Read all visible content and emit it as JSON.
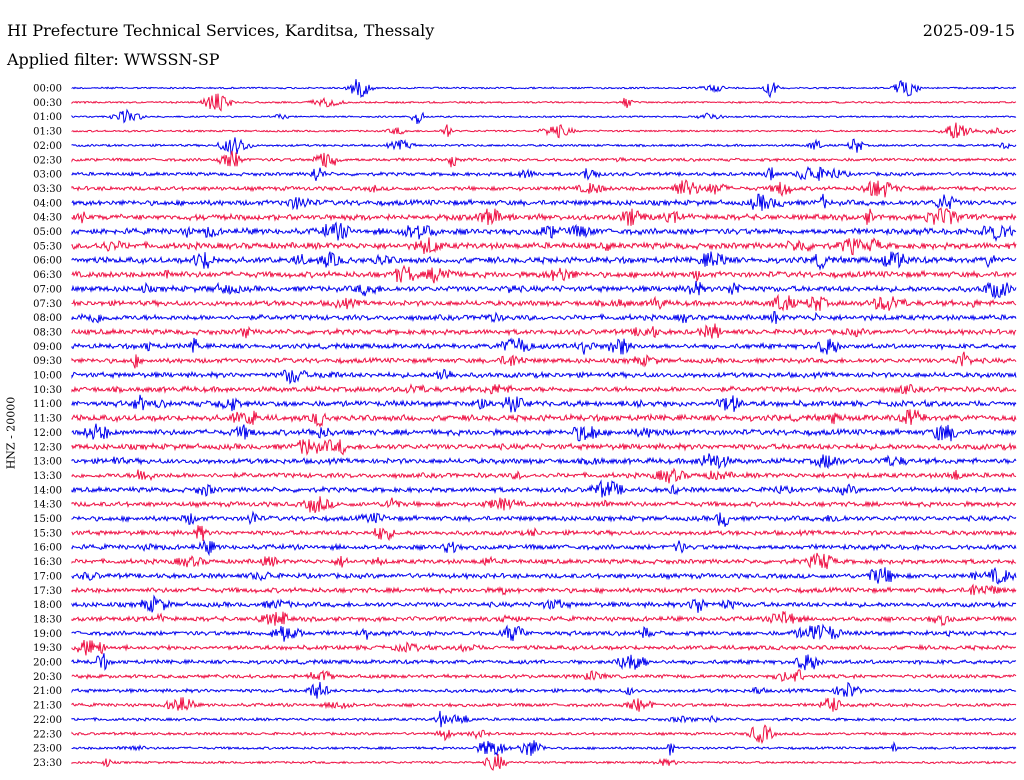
{
  "header": {
    "station": "HI Prefecture Technical Services, Karditsa, Thessaly",
    "date": "2025-09-15",
    "filter": "Applied filter: WWSSN-SP"
  },
  "chart_data": {
    "type": "line",
    "ylabel": "HNZ - 20000",
    "rows": [
      "00:00",
      "00:30",
      "01:00",
      "01:30",
      "02:00",
      "02:30",
      "03:00",
      "03:30",
      "04:00",
      "04:30",
      "05:00",
      "05:30",
      "06:00",
      "06:30",
      "07:00",
      "07:30",
      "08:00",
      "08:30",
      "09:00",
      "09:30",
      "10:00",
      "10:30",
      "11:00",
      "11:30",
      "12:00",
      "12:30",
      "13:00",
      "13:30",
      "14:00",
      "14:30",
      "15:00",
      "15:30",
      "16:00",
      "16:30",
      "17:00",
      "17:30",
      "18:00",
      "18:30",
      "19:00",
      "19:30",
      "20:00",
      "20:30",
      "21:00",
      "21:30",
      "22:00",
      "22:30",
      "23:00",
      "23:30"
    ],
    "colors": {
      "even_rows": "#0000ee",
      "odd_rows": "#ee1144"
    },
    "noise_level": [
      0.05,
      0.06,
      0.05,
      0.07,
      0.12,
      0.22,
      0.28,
      0.35,
      0.5,
      0.55,
      0.6,
      0.62,
      0.6,
      0.58,
      0.55,
      0.5,
      0.5,
      0.48,
      0.45,
      0.45,
      0.48,
      0.5,
      0.55,
      0.6,
      0.55,
      0.55,
      0.5,
      0.45,
      0.45,
      0.45,
      0.45,
      0.42,
      0.45,
      0.42,
      0.45,
      0.45,
      0.45,
      0.42,
      0.4,
      0.38,
      0.35,
      0.3,
      0.28,
      0.26,
      0.2,
      0.18,
      0.15,
      0.12
    ]
  }
}
